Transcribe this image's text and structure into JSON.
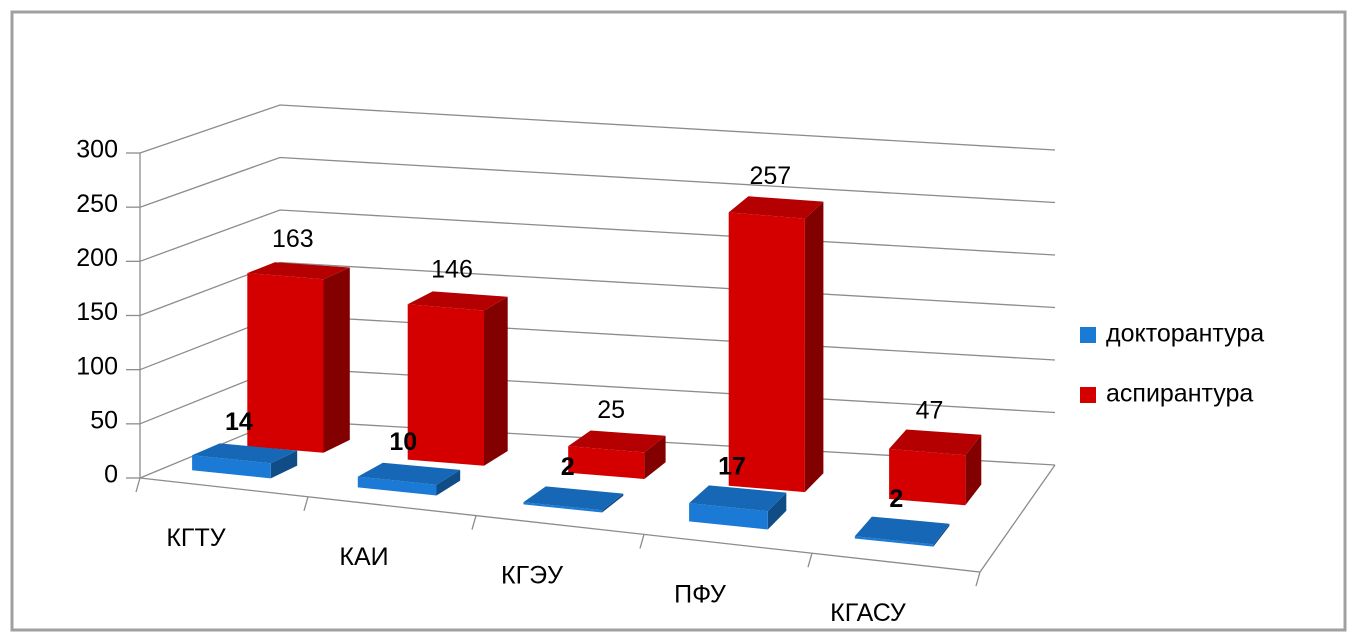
{
  "chart_data": {
    "type": "bar3d",
    "categories": [
      "КГТУ",
      "КАИ",
      "КГЭУ",
      "ПФУ",
      "КГАСУ"
    ],
    "series": [
      {
        "name": "докторантура",
        "color": "#1a7ad6",
        "values": [
          14,
          10,
          2,
          17,
          2
        ]
      },
      {
        "name": "аспирантура",
        "color": "#d40000",
        "values": [
          163,
          146,
          25,
          257,
          47
        ]
      }
    ],
    "ylim": [
      0,
      300
    ],
    "yticks": [
      0,
      50,
      100,
      150,
      200,
      250,
      300
    ],
    "grid": true,
    "legend": "right"
  }
}
